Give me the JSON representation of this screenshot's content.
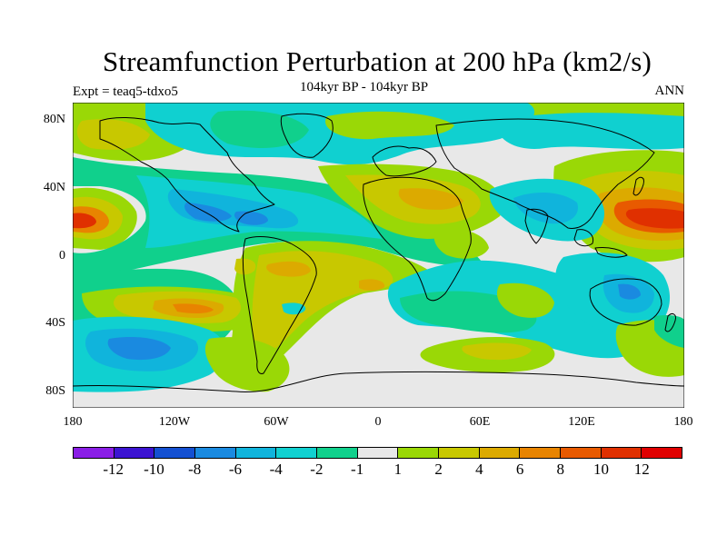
{
  "title": "Streamfunction Perturbation at 200 hPa (km2/s)",
  "subtitle_left": "Expt = teaq5-tdxo5",
  "subtitle_center": "104kyr BP - 104kyr BP",
  "subtitle_right": "ANN",
  "y_axis_labels": [
    "80N",
    "40N",
    "0",
    "40S",
    "80S"
  ],
  "x_axis_labels": [
    "180",
    "120W",
    "60W",
    "0",
    "60E",
    "120E",
    "180"
  ],
  "colorbar": {
    "colors": [
      "#8a1ee6",
      "#3c14d2",
      "#1450d2",
      "#1a8ae0",
      "#10b4dc",
      "#10d0d0",
      "#10d08c",
      "#e8e8e8",
      "#9ad806",
      "#c8c800",
      "#dcaa00",
      "#e88400",
      "#e85a00",
      "#e03000",
      "#e00000"
    ],
    "labels": [
      "-12",
      "-10",
      "-8",
      "-6",
      "-4",
      "-2",
      "-1",
      "1",
      "2",
      "4",
      "6",
      "8",
      "10",
      "12"
    ]
  },
  "palette": {
    "background_field": "#e8e8e8",
    "neg_light": "#10d08c",
    "neg_mid": "#10d0d0",
    "neg_strong": "#10b4dc",
    "neg_deep": "#1a8ae0",
    "pos_light": "#9ad806",
    "pos_mid": "#c8c800",
    "pos_strong": "#dcaa00",
    "pos_deep": "#e88400",
    "pos_deeper": "#e85a00",
    "pos_max": "#e03000"
  }
}
